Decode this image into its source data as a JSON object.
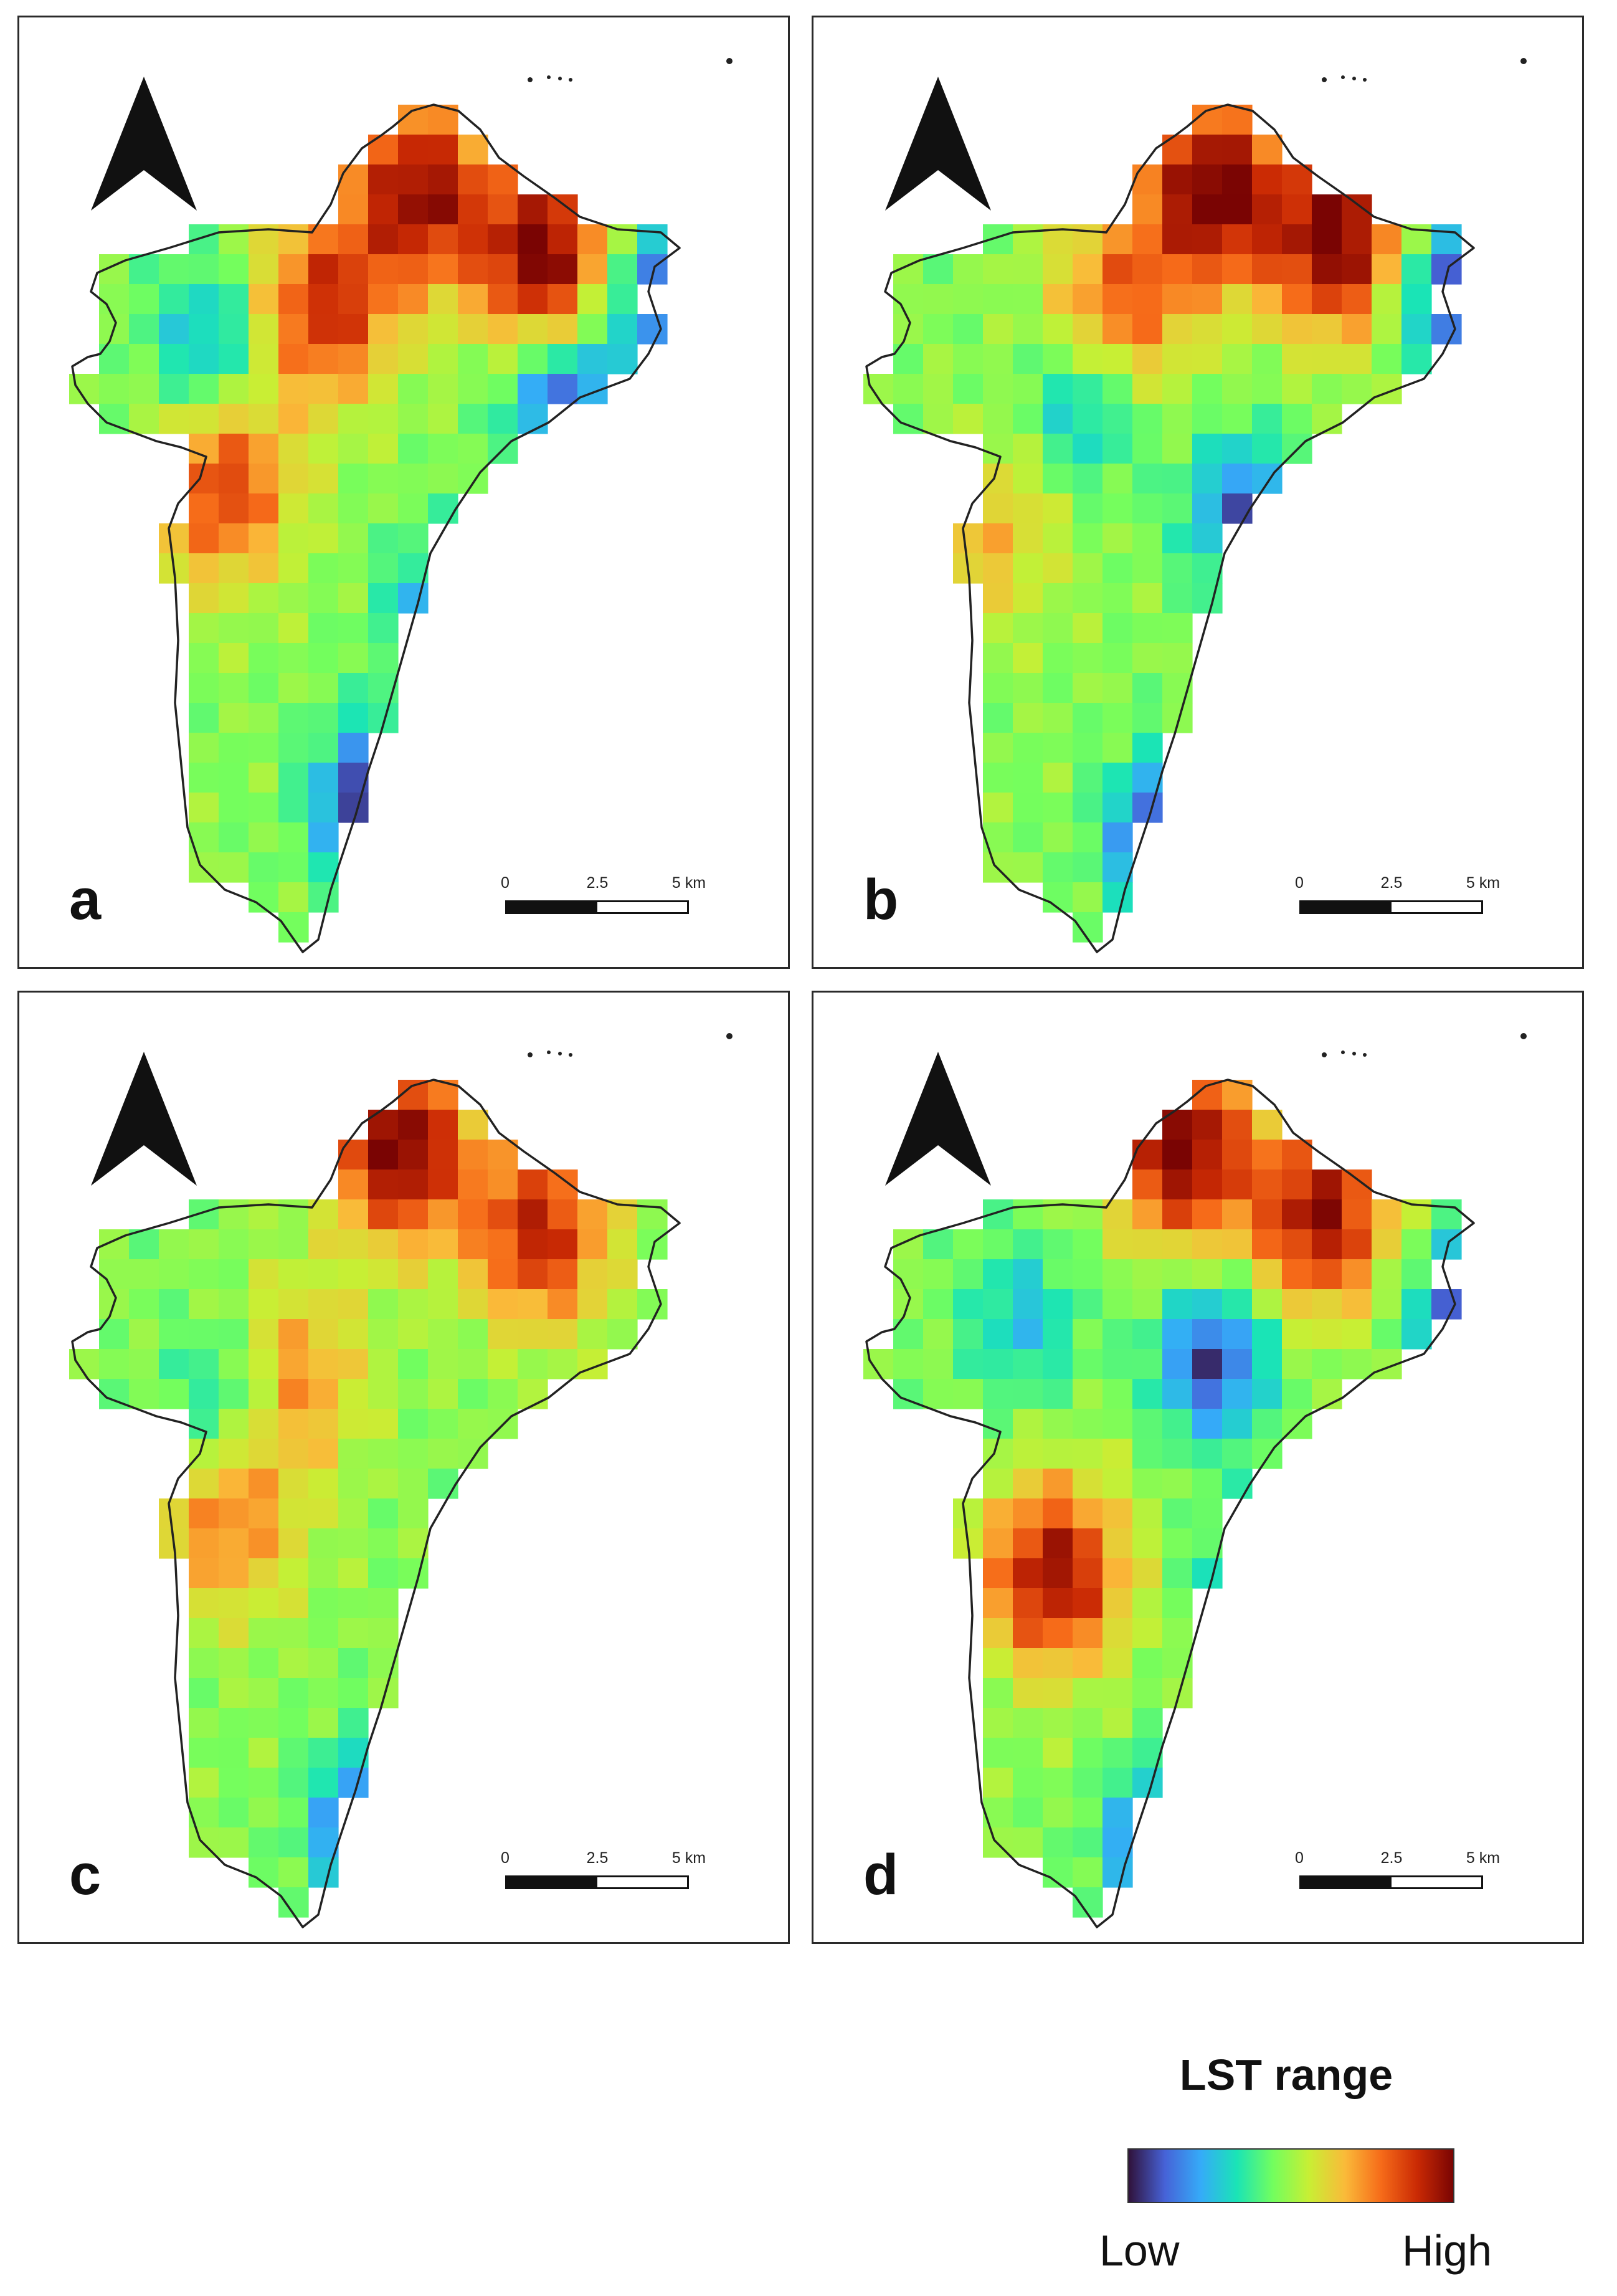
{
  "figure": {
    "panels": [
      {
        "id": "a",
        "label": "a",
        "hotspots": [
          [
            0.55,
            0.1,
            0.9
          ],
          [
            0.75,
            0.18,
            1.0
          ],
          [
            0.4,
            0.24,
            0.75
          ],
          [
            0.24,
            0.45,
            0.7
          ]
        ],
        "coldspots": [
          [
            0.48,
            0.82,
            1.0
          ],
          [
            0.78,
            0.35,
            0.8
          ],
          [
            0.22,
            0.28,
            0.5
          ],
          [
            0.92,
            0.22,
            0.7
          ],
          [
            0.6,
            0.6,
            0.7
          ]
        ]
      },
      {
        "id": "b",
        "label": "b",
        "hotspots": [
          [
            0.55,
            0.1,
            1.0
          ],
          [
            0.75,
            0.16,
            1.0
          ],
          [
            0.4,
            0.24,
            0.6
          ],
          [
            0.2,
            0.5,
            0.35
          ]
        ],
        "coldspots": [
          [
            0.48,
            0.86,
            1.0
          ],
          [
            0.92,
            0.22,
            0.8
          ],
          [
            0.6,
            0.48,
            0.7
          ],
          [
            0.35,
            0.35,
            0.5
          ]
        ]
      },
      {
        "id": "c",
        "label": "c",
        "hotspots": [
          [
            0.52,
            0.08,
            1.0
          ],
          [
            0.74,
            0.18,
            0.8
          ],
          [
            0.35,
            0.35,
            0.5
          ],
          [
            0.25,
            0.52,
            0.5
          ]
        ],
        "coldspots": [
          [
            0.48,
            0.88,
            1.0
          ],
          [
            0.25,
            0.37,
            0.45
          ]
        ]
      },
      {
        "id": "d",
        "label": "d",
        "hotspots": [
          [
            0.5,
            0.08,
            1.0
          ],
          [
            0.72,
            0.16,
            0.9
          ],
          [
            0.3,
            0.58,
            0.9
          ]
        ],
        "coldspots": [
          [
            0.48,
            0.9,
            1.0
          ],
          [
            0.95,
            0.27,
            0.8
          ],
          [
            0.55,
            0.33,
            0.8
          ],
          [
            0.25,
            0.28,
            0.4
          ],
          [
            0.62,
            0.6,
            0.6
          ]
        ]
      }
    ],
    "scale_bar": {
      "ticks": [
        "0",
        "2.5",
        "5 km"
      ],
      "values_km": [
        0,
        2.5,
        5
      ]
    },
    "legend": {
      "title": "LST range",
      "low_label": "Low",
      "high_label": "High",
      "colors": [
        "#30123b",
        "#4662d7",
        "#35abf8",
        "#1ae4b6",
        "#72fe5e",
        "#c8ef34",
        "#faba39",
        "#f66b19",
        "#ca2a04",
        "#7a0403"
      ]
    },
    "outline_color": "#222222",
    "north_arrow_color": "#111111"
  }
}
